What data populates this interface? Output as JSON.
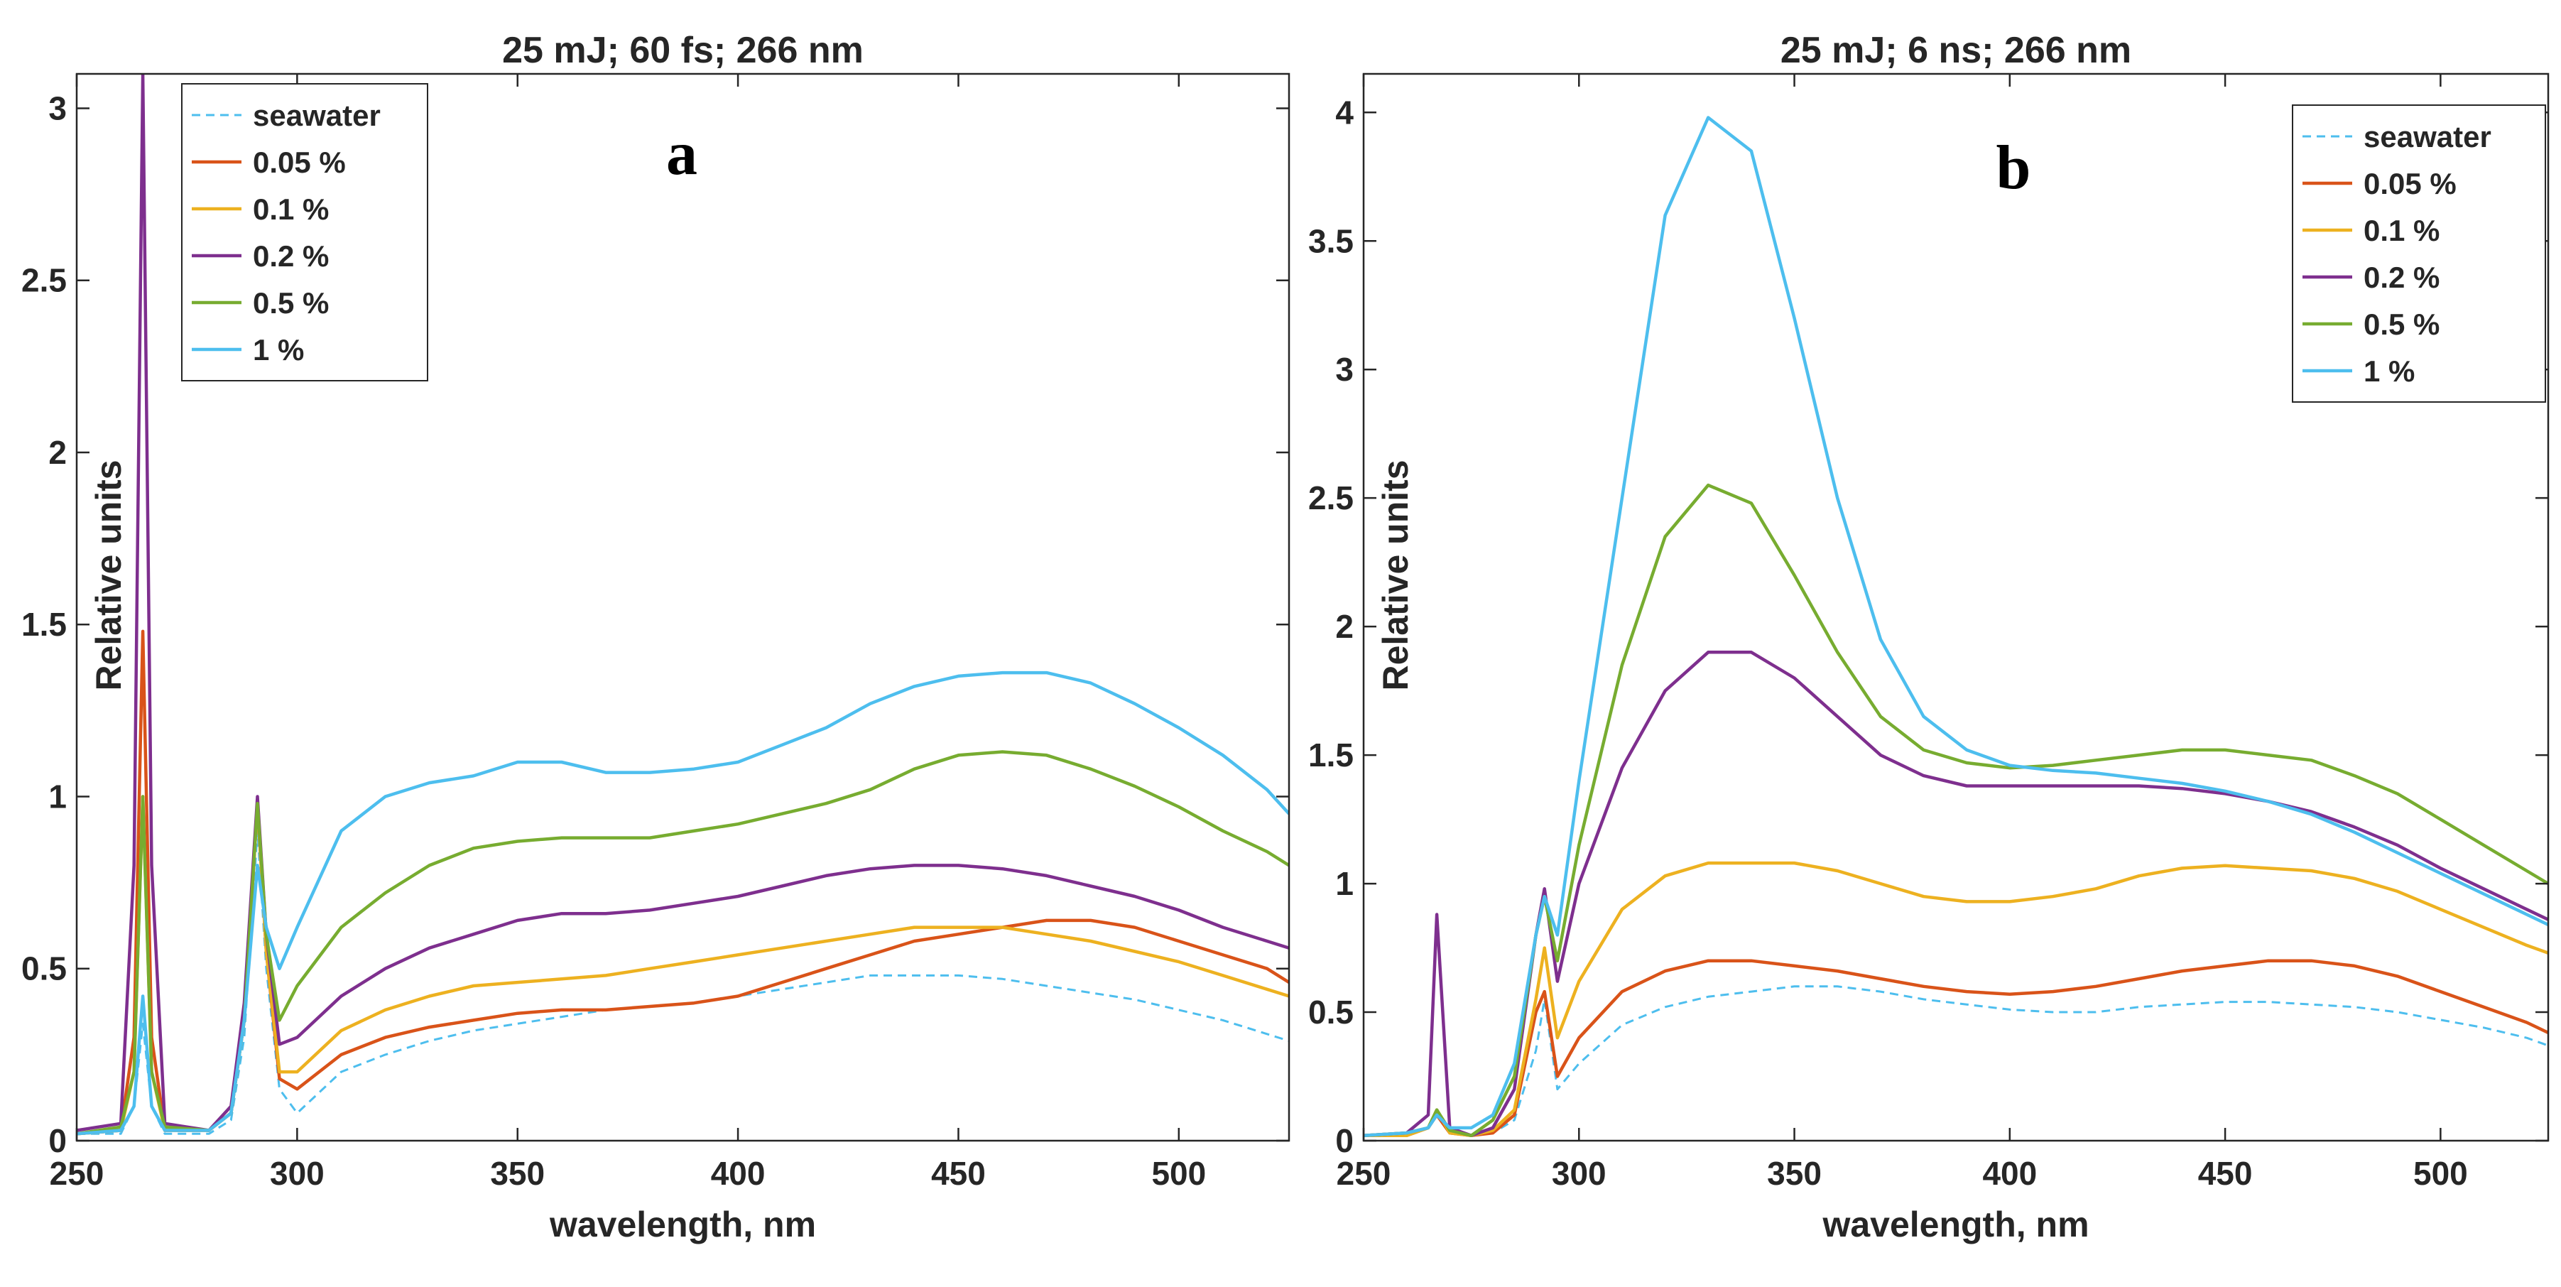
{
  "chart_data": [
    {
      "type": "line",
      "title": "25 mJ; 60 fs; 266 nm",
      "panel_label": "a",
      "xlabel": "wavelength, nm",
      "ylabel": "Relative units",
      "xlim": [
        250,
        525
      ],
      "ylim": [
        0,
        3.1
      ],
      "xticks": [
        "250",
        "300",
        "350",
        "400",
        "450",
        "500"
      ],
      "xtick_values": [
        250,
        300,
        350,
        400,
        450,
        500
      ],
      "yticks": [
        "0",
        "0.5",
        "1",
        "1.5",
        "2",
        "2.5",
        "3"
      ],
      "ytick_values": [
        0,
        0.5,
        1,
        1.5,
        2,
        2.5,
        3
      ],
      "legend_position": "top-left",
      "series": [
        {
          "name": "seawater",
          "color": "#4DBEEE",
          "dashed": true,
          "x": [
            250,
            260,
            263,
            265,
            267,
            270,
            280,
            285,
            288,
            291,
            293,
            296,
            300,
            310,
            320,
            330,
            340,
            350,
            360,
            370,
            380,
            390,
            400,
            410,
            420,
            430,
            440,
            450,
            460,
            470,
            480,
            490,
            500,
            510,
            520,
            525
          ],
          "y": [
            0.02,
            0.02,
            0.1,
            0.34,
            0.1,
            0.02,
            0.02,
            0.06,
            0.3,
            0.9,
            0.5,
            0.15,
            0.08,
            0.2,
            0.25,
            0.29,
            0.32,
            0.34,
            0.36,
            0.38,
            0.39,
            0.4,
            0.42,
            0.44,
            0.46,
            0.48,
            0.48,
            0.48,
            0.47,
            0.45,
            0.43,
            0.41,
            0.38,
            0.35,
            0.31,
            0.29
          ]
        },
        {
          "name": "0.05 %",
          "color": "#D95319",
          "dashed": false,
          "x": [
            250,
            260,
            263,
            265,
            267,
            270,
            280,
            285,
            288,
            291,
            293,
            296,
            300,
            310,
            320,
            330,
            340,
            350,
            360,
            370,
            380,
            390,
            400,
            410,
            420,
            430,
            440,
            450,
            460,
            470,
            480,
            490,
            500,
            510,
            520,
            525
          ],
          "y": [
            0.02,
            0.03,
            0.3,
            1.48,
            0.3,
            0.03,
            0.03,
            0.08,
            0.35,
            0.98,
            0.55,
            0.18,
            0.15,
            0.25,
            0.3,
            0.33,
            0.35,
            0.37,
            0.38,
            0.38,
            0.39,
            0.4,
            0.42,
            0.46,
            0.5,
            0.54,
            0.58,
            0.6,
            0.62,
            0.64,
            0.64,
            0.62,
            0.58,
            0.54,
            0.5,
            0.46
          ]
        },
        {
          "name": "0.1 %",
          "color": "#EDB120",
          "dashed": false,
          "x": [
            250,
            260,
            263,
            265,
            267,
            270,
            280,
            285,
            288,
            291,
            293,
            296,
            300,
            310,
            320,
            330,
            340,
            350,
            360,
            370,
            380,
            390,
            400,
            410,
            420,
            430,
            440,
            450,
            460,
            470,
            480,
            490,
            500,
            510,
            520,
            525
          ],
          "y": [
            0.02,
            0.03,
            0.2,
            1.0,
            0.2,
            0.03,
            0.03,
            0.08,
            0.35,
            0.98,
            0.55,
            0.2,
            0.2,
            0.32,
            0.38,
            0.42,
            0.45,
            0.46,
            0.47,
            0.48,
            0.5,
            0.52,
            0.54,
            0.56,
            0.58,
            0.6,
            0.62,
            0.62,
            0.62,
            0.6,
            0.58,
            0.55,
            0.52,
            0.48,
            0.44,
            0.42
          ]
        },
        {
          "name": "0.2 %",
          "color": "#7E2F8E",
          "dashed": false,
          "x": [
            250,
            260,
            263,
            265,
            267,
            270,
            280,
            285,
            288,
            291,
            293,
            296,
            300,
            310,
            320,
            330,
            340,
            350,
            360,
            370,
            380,
            390,
            400,
            410,
            420,
            430,
            440,
            450,
            460,
            470,
            480,
            490,
            500,
            510,
            520,
            525
          ],
          "y": [
            0.03,
            0.05,
            0.8,
            3.1,
            0.8,
            0.05,
            0.03,
            0.1,
            0.4,
            1.0,
            0.6,
            0.28,
            0.3,
            0.42,
            0.5,
            0.56,
            0.6,
            0.64,
            0.66,
            0.66,
            0.67,
            0.69,
            0.71,
            0.74,
            0.77,
            0.79,
            0.8,
            0.8,
            0.79,
            0.77,
            0.74,
            0.71,
            0.67,
            0.62,
            0.58,
            0.56
          ]
        },
        {
          "name": "0.5 %",
          "color": "#77AC30",
          "dashed": false,
          "x": [
            250,
            260,
            263,
            265,
            267,
            270,
            280,
            285,
            288,
            291,
            293,
            296,
            300,
            310,
            320,
            330,
            340,
            350,
            360,
            370,
            380,
            390,
            400,
            410,
            420,
            430,
            440,
            450,
            460,
            470,
            480,
            490,
            500,
            510,
            520,
            525
          ],
          "y": [
            0.02,
            0.04,
            0.2,
            1.0,
            0.2,
            0.04,
            0.03,
            0.08,
            0.35,
            0.98,
            0.6,
            0.35,
            0.45,
            0.62,
            0.72,
            0.8,
            0.85,
            0.87,
            0.88,
            0.88,
            0.88,
            0.9,
            0.92,
            0.95,
            0.98,
            1.02,
            1.08,
            1.12,
            1.13,
            1.12,
            1.08,
            1.03,
            0.97,
            0.9,
            0.84,
            0.8
          ]
        },
        {
          "name": "1 %",
          "color": "#4DBEEE",
          "dashed": false,
          "x": [
            250,
            260,
            263,
            265,
            267,
            270,
            280,
            285,
            288,
            291,
            293,
            296,
            300,
            310,
            320,
            330,
            340,
            350,
            360,
            370,
            380,
            390,
            400,
            410,
            420,
            430,
            440,
            450,
            460,
            470,
            480,
            490,
            500,
            510,
            520,
            525
          ],
          "y": [
            0.02,
            0.03,
            0.1,
            0.42,
            0.1,
            0.03,
            0.03,
            0.08,
            0.35,
            0.8,
            0.62,
            0.5,
            0.62,
            0.9,
            1.0,
            1.04,
            1.06,
            1.1,
            1.1,
            1.07,
            1.07,
            1.08,
            1.1,
            1.15,
            1.2,
            1.27,
            1.32,
            1.35,
            1.36,
            1.36,
            1.33,
            1.27,
            1.2,
            1.12,
            1.02,
            0.95
          ]
        }
      ]
    },
    {
      "type": "line",
      "title": "25 mJ; 6 ns; 266 nm",
      "panel_label": "b",
      "xlabel": "wavelength, nm",
      "ylabel": "Relative units",
      "xlim": [
        250,
        525
      ],
      "ylim": [
        0,
        4.15
      ],
      "xticks": [
        "250",
        "300",
        "350",
        "400",
        "450",
        "500"
      ],
      "xtick_values": [
        250,
        300,
        350,
        400,
        450,
        500
      ],
      "yticks": [
        "0",
        "0.5",
        "1",
        "1.5",
        "2",
        "2.5",
        "3",
        "3.5",
        "4"
      ],
      "ytick_values": [
        0,
        0.5,
        1,
        1.5,
        2,
        2.5,
        3,
        3.5,
        4
      ],
      "legend_position": "top-right",
      "series": [
        {
          "name": "seawater",
          "color": "#4DBEEE",
          "dashed": true,
          "x": [
            250,
            260,
            265,
            267,
            270,
            275,
            280,
            285,
            290,
            292,
            295,
            300,
            310,
            320,
            330,
            340,
            350,
            360,
            370,
            380,
            390,
            400,
            410,
            420,
            430,
            440,
            450,
            460,
            470,
            480,
            490,
            500,
            510,
            520,
            525
          ],
          "y": [
            0.02,
            0.02,
            0.05,
            0.1,
            0.03,
            0.02,
            0.03,
            0.08,
            0.35,
            0.55,
            0.2,
            0.3,
            0.45,
            0.52,
            0.56,
            0.58,
            0.6,
            0.6,
            0.58,
            0.55,
            0.53,
            0.51,
            0.5,
            0.5,
            0.52,
            0.53,
            0.54,
            0.54,
            0.53,
            0.52,
            0.5,
            0.47,
            0.44,
            0.4,
            0.37
          ]
        },
        {
          "name": "0.05 %",
          "color": "#D95319",
          "dashed": false,
          "x": [
            250,
            260,
            265,
            267,
            270,
            275,
            280,
            285,
            290,
            292,
            295,
            300,
            310,
            320,
            330,
            340,
            350,
            360,
            370,
            380,
            390,
            400,
            410,
            420,
            430,
            440,
            450,
            460,
            470,
            480,
            490,
            500,
            510,
            520,
            525
          ],
          "y": [
            0.02,
            0.02,
            0.05,
            0.1,
            0.03,
            0.02,
            0.03,
            0.1,
            0.5,
            0.58,
            0.25,
            0.4,
            0.58,
            0.66,
            0.7,
            0.7,
            0.68,
            0.66,
            0.63,
            0.6,
            0.58,
            0.57,
            0.58,
            0.6,
            0.63,
            0.66,
            0.68,
            0.7,
            0.7,
            0.68,
            0.64,
            0.58,
            0.52,
            0.46,
            0.42
          ]
        },
        {
          "name": "0.1 %",
          "color": "#EDB120",
          "dashed": false,
          "x": [
            250,
            260,
            265,
            267,
            270,
            275,
            280,
            285,
            290,
            292,
            295,
            300,
            310,
            320,
            330,
            340,
            350,
            360,
            370,
            380,
            390,
            400,
            410,
            420,
            430,
            440,
            450,
            460,
            470,
            480,
            490,
            500,
            510,
            520,
            525
          ],
          "y": [
            0.02,
            0.02,
            0.05,
            0.12,
            0.03,
            0.02,
            0.04,
            0.12,
            0.55,
            0.75,
            0.4,
            0.62,
            0.9,
            1.03,
            1.08,
            1.08,
            1.08,
            1.05,
            1.0,
            0.95,
            0.93,
            0.93,
            0.95,
            0.98,
            1.03,
            1.06,
            1.07,
            1.06,
            1.05,
            1.02,
            0.97,
            0.9,
            0.83,
            0.76,
            0.73
          ]
        },
        {
          "name": "0.2 %",
          "color": "#7E2F8E",
          "dashed": false,
          "x": [
            250,
            260,
            265,
            267,
            270,
            275,
            280,
            285,
            290,
            292,
            295,
            300,
            310,
            320,
            330,
            340,
            350,
            360,
            370,
            380,
            390,
            400,
            410,
            420,
            430,
            440,
            450,
            460,
            470,
            480,
            490,
            500,
            510,
            520,
            525
          ],
          "y": [
            0.02,
            0.03,
            0.1,
            0.88,
            0.05,
            0.02,
            0.05,
            0.2,
            0.8,
            0.98,
            0.62,
            1.0,
            1.45,
            1.75,
            1.9,
            1.9,
            1.8,
            1.65,
            1.5,
            1.42,
            1.38,
            1.38,
            1.38,
            1.38,
            1.38,
            1.37,
            1.35,
            1.32,
            1.28,
            1.22,
            1.15,
            1.06,
            0.98,
            0.9,
            0.86
          ]
        },
        {
          "name": "0.5 %",
          "color": "#77AC30",
          "dashed": false,
          "x": [
            250,
            260,
            265,
            267,
            270,
            275,
            280,
            285,
            290,
            292,
            295,
            300,
            310,
            320,
            330,
            340,
            350,
            360,
            370,
            380,
            390,
            400,
            410,
            420,
            430,
            440,
            450,
            460,
            470,
            480,
            490,
            500,
            510,
            520,
            525
          ],
          "y": [
            0.02,
            0.03,
            0.05,
            0.12,
            0.04,
            0.02,
            0.08,
            0.25,
            0.8,
            0.95,
            0.7,
            1.15,
            1.85,
            2.35,
            2.55,
            2.48,
            2.2,
            1.9,
            1.65,
            1.52,
            1.47,
            1.45,
            1.46,
            1.48,
            1.5,
            1.52,
            1.52,
            1.5,
            1.48,
            1.42,
            1.35,
            1.25,
            1.15,
            1.05,
            1.0
          ]
        },
        {
          "name": "1 %",
          "color": "#4DBEEE",
          "dashed": false,
          "x": [
            250,
            260,
            265,
            267,
            270,
            275,
            280,
            285,
            290,
            292,
            295,
            300,
            310,
            320,
            330,
            340,
            350,
            360,
            370,
            380,
            390,
            400,
            410,
            420,
            430,
            440,
            450,
            460,
            470,
            480,
            490,
            500,
            510,
            520,
            525
          ],
          "y": [
            0.02,
            0.03,
            0.05,
            0.1,
            0.05,
            0.05,
            0.1,
            0.3,
            0.8,
            0.95,
            0.8,
            1.4,
            2.5,
            3.6,
            3.98,
            3.85,
            3.2,
            2.5,
            1.95,
            1.65,
            1.52,
            1.46,
            1.44,
            1.43,
            1.41,
            1.39,
            1.36,
            1.32,
            1.27,
            1.2,
            1.12,
            1.04,
            0.96,
            0.88,
            0.84
          ]
        }
      ]
    }
  ]
}
